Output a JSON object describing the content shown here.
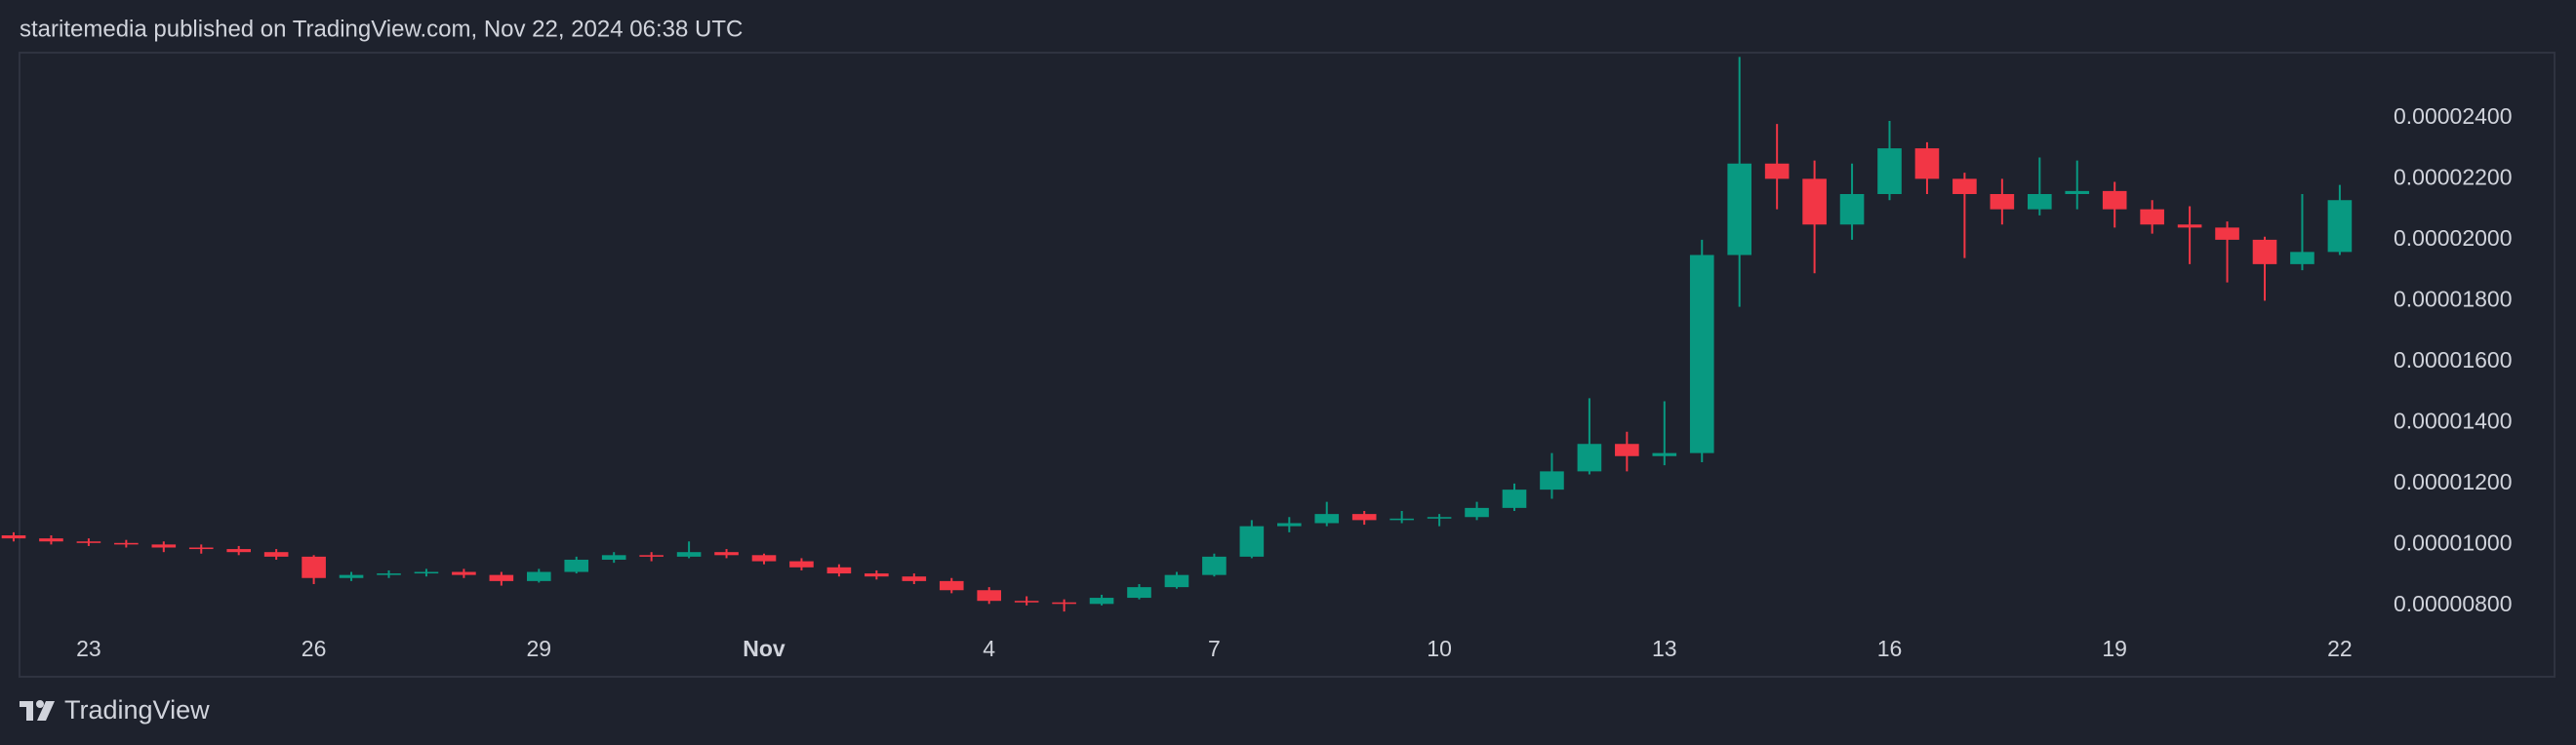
{
  "chart_data": {
    "type": "candlestick",
    "title": "staritemedia published on TradingView.com, Nov 22, 2024 06:38 UTC",
    "brand": "TradingView",
    "up_color": "#089981",
    "down_color": "#f23645",
    "categories": [
      null,
      null,
      "23",
      null,
      null,
      null,
      null,
      null,
      "26",
      null,
      null,
      null,
      null,
      null,
      "29",
      null,
      null,
      null,
      null,
      null,
      "Nov",
      null,
      null,
      null,
      null,
      null,
      "4",
      null,
      null,
      null,
      null,
      null,
      "7",
      null,
      null,
      null,
      null,
      null,
      "10",
      null,
      null,
      null,
      null,
      null,
      "13",
      null,
      null,
      null,
      null,
      null,
      "16",
      null,
      null,
      null,
      null,
      null,
      "19",
      null,
      null,
      null,
      null,
      null,
      "22"
    ],
    "open": [
      1.03e-05,
      1.02e-05,
      1.01e-05,
      1.005e-05,
      1e-05,
      9.9e-06,
      9.85e-06,
      9.75e-06,
      9.6e-06,
      8.9e-06,
      9e-06,
      9.05e-06,
      9.1e-06,
      9e-06,
      8.8e-06,
      9.1e-06,
      9.5e-06,
      9.65e-06,
      9.6e-06,
      9.75e-06,
      9.65e-06,
      9.45e-06,
      9.25e-06,
      9.05e-06,
      8.95e-06,
      8.8e-06,
      8.5e-06,
      8.15e-06,
      8.1e-06,
      8.05e-06,
      8.25e-06,
      8.6e-06,
      9e-06,
      9.6e-06,
      1.06e-05,
      1.07e-05,
      1.1e-05,
      1.08e-05,
      1.085e-05,
      1.09e-05,
      1.12e-05,
      1.18e-05,
      1.24e-05,
      1.33e-05,
      1.29e-05,
      1.3e-05,
      1.95e-05,
      2.25e-05,
      2.2e-05,
      2.05e-05,
      2.15e-05,
      2.3e-05,
      2.2e-05,
      2.15e-05,
      2.1e-05,
      2.15e-05,
      2.16e-05,
      2.1e-05,
      2.05e-05,
      2.04e-05,
      2e-05,
      1.92e-05,
      1.96e-05
    ],
    "high": [
      1.04e-05,
      1.03e-05,
      1.02e-05,
      1.015e-05,
      1.01e-05,
      1e-05,
      9.95e-06,
      9.85e-06,
      9.65e-06,
      9.1e-06,
      9.15e-06,
      9.2e-06,
      9.2e-06,
      9.1e-06,
      9.2e-06,
      9.6e-06,
      9.75e-06,
      9.75e-06,
      1.01e-05,
      9.85e-06,
      9.7e-06,
      9.55e-06,
      9.35e-06,
      9.15e-06,
      9.05e-06,
      8.9e-06,
      8.6e-06,
      8.3e-06,
      8.2e-06,
      8.35e-06,
      8.7e-06,
      9.1e-06,
      9.7e-06,
      1.08e-05,
      1.09e-05,
      1.14e-05,
      1.11e-05,
      1.11e-05,
      1.1e-05,
      1.14e-05,
      1.2e-05,
      1.3e-05,
      1.48e-05,
      1.37e-05,
      1.47e-05,
      2e-05,
      2.6e-05,
      2.38e-05,
      2.26e-05,
      2.25e-05,
      2.39e-05,
      2.32e-05,
      2.22e-05,
      2.2e-05,
      2.27e-05,
      2.26e-05,
      2.19e-05,
      2.13e-05,
      2.11e-05,
      2.06e-05,
      2.01e-05,
      2.15e-05,
      2.18e-05
    ],
    "low": [
      1.01e-05,
      1e-05,
      9.95e-06,
      9.9e-06,
      9.75e-06,
      9.7e-06,
      9.65e-06,
      9.5e-06,
      8.7e-06,
      8.8e-06,
      8.9e-06,
      8.95e-06,
      8.9e-06,
      8.65e-06,
      8.75e-06,
      9.05e-06,
      9.4e-06,
      9.45e-06,
      9.55e-06,
      9.55e-06,
      9.35e-06,
      9.15e-06,
      8.95e-06,
      8.85e-06,
      8.7e-06,
      8.4e-06,
      8.05e-06,
      8e-06,
      7.8e-06,
      8e-06,
      8.2e-06,
      8.55e-06,
      8.95e-06,
      9.55e-06,
      1.04e-05,
      1.06e-05,
      1.065e-05,
      1.07e-05,
      1.06e-05,
      1.08e-05,
      1.11e-05,
      1.15e-05,
      1.23e-05,
      1.24e-05,
      1.26e-05,
      1.27e-05,
      1.78e-05,
      2.1e-05,
      1.89e-05,
      2e-05,
      2.13e-05,
      2.15e-05,
      1.94e-05,
      2.05e-05,
      2.08e-05,
      2.1e-05,
      2.04e-05,
      2.02e-05,
      1.92e-05,
      1.86e-05,
      1.8e-05,
      1.9e-05,
      1.95e-05
    ],
    "close": [
      1.02e-05,
      1.01e-05,
      1.005e-05,
      1e-05,
      9.9e-06,
      9.85e-06,
      9.75e-06,
      9.6e-06,
      8.9e-06,
      9e-06,
      9.05e-06,
      9.1e-06,
      9e-06,
      8.8e-06,
      9.1e-06,
      9.5e-06,
      9.65e-06,
      9.6e-06,
      9.75e-06,
      9.65e-06,
      9.45e-06,
      9.25e-06,
      9.05e-06,
      8.95e-06,
      8.8e-06,
      8.5e-06,
      8.15e-06,
      8.1e-06,
      8.05e-06,
      8.25e-06,
      8.6e-06,
      9e-06,
      9.6e-06,
      1.06e-05,
      1.07e-05,
      1.1e-05,
      1.08e-05,
      1.085e-05,
      1.09e-05,
      1.12e-05,
      1.18e-05,
      1.24e-05,
      1.33e-05,
      1.29e-05,
      1.3e-05,
      1.95e-05,
      2.25e-05,
      2.2e-05,
      2.05e-05,
      2.15e-05,
      2.3e-05,
      2.2e-05,
      2.15e-05,
      2.1e-05,
      2.15e-05,
      2.16e-05,
      2.1e-05,
      2.05e-05,
      2.04e-05,
      2e-05,
      1.92e-05,
      1.96e-05,
      2.13e-05
    ],
    "ylim": [
      5.66e-06,
      2.614e-05
    ],
    "yticks": [
      {
        "value": 8e-06,
        "label": "0.00000800"
      },
      {
        "value": 1e-05,
        "label": "0.00001000"
      },
      {
        "value": 1.2e-05,
        "label": "0.00001200"
      },
      {
        "value": 1.4e-05,
        "label": "0.00001400"
      },
      {
        "value": 1.6e-05,
        "label": "0.00001600"
      },
      {
        "value": 1.8e-05,
        "label": "0.00001800"
      },
      {
        "value": 2e-05,
        "label": "0.00002000"
      },
      {
        "value": 2.2e-05,
        "label": "0.00002200"
      },
      {
        "value": 2.4e-05,
        "label": "0.00002400"
      }
    ]
  }
}
